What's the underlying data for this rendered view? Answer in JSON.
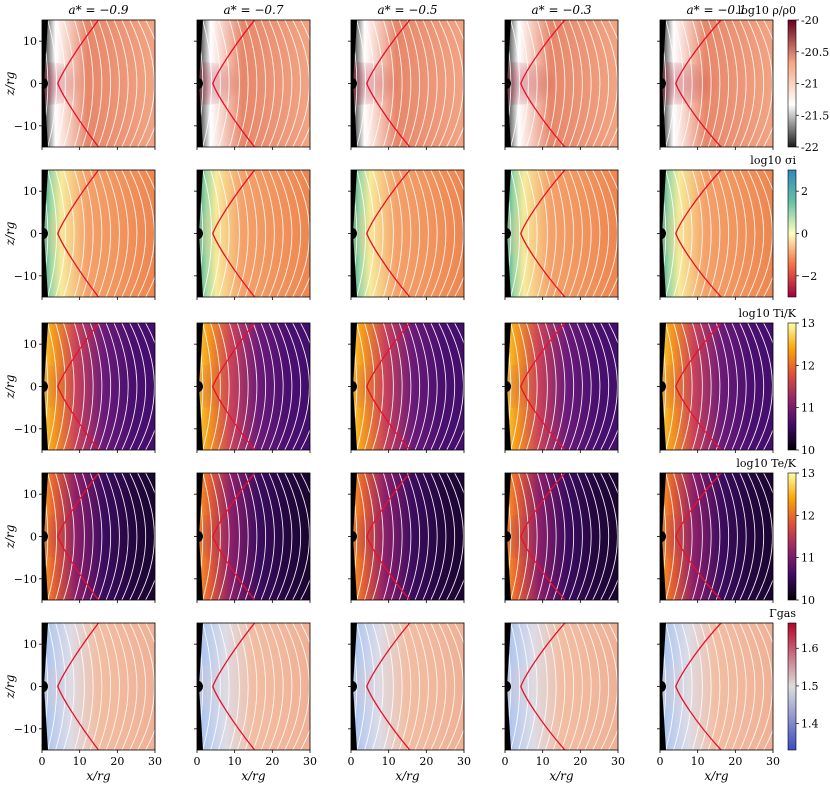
{
  "chart_data": {
    "type": "heatmap",
    "panel_titles": [
      "a* = −0.9",
      "a* = −0.7",
      "a* = −0.5",
      "a* = −0.3",
      "a* = −0.1"
    ],
    "xlabel": "x/rg",
    "ylabel": "z/rg",
    "xlim": [
      0,
      30
    ],
    "ylim": [
      -15,
      15
    ],
    "xticks": [
      "0",
      "10",
      "20",
      "30"
    ],
    "yticks": [
      "10",
      "0",
      "−10"
    ],
    "grid": false,
    "rows": [
      {
        "quantity": "log10 ρ/ρ0",
        "colormap": "RdGy_r",
        "colors": [
          "#1a1a1a",
          "#ffffff",
          "#f4a582",
          "#67001f"
        ],
        "clim": [
          -22,
          -20
        ],
        "cbar_ticks": [
          "-20",
          "-20.5",
          "-21",
          "-21.5",
          "-22"
        ]
      },
      {
        "quantity": "log10 σi",
        "colormap": "Spectral",
        "colors": [
          "#9e0142",
          "#f46d43",
          "#ffffbf",
          "#66c2a5",
          "#3288bd"
        ],
        "clim": [
          -3,
          3
        ],
        "cbar_ticks": [
          "2",
          "0",
          "−2"
        ]
      },
      {
        "quantity": "log10 Ti/K",
        "colormap": "inferno",
        "colors": [
          "#000004",
          "#420a68",
          "#932667",
          "#dd513a",
          "#fca50a",
          "#fcffa4"
        ],
        "clim": [
          10,
          13
        ],
        "cbar_ticks": [
          "13",
          "12",
          "11",
          "10"
        ]
      },
      {
        "quantity": "log10 Te/K",
        "colormap": "inferno",
        "colors": [
          "#000004",
          "#420a68",
          "#932667",
          "#dd513a",
          "#fca50a",
          "#fcffa4"
        ],
        "clim": [
          10,
          13
        ],
        "cbar_ticks": [
          "13",
          "12",
          "11",
          "10"
        ]
      },
      {
        "quantity": "Γgas",
        "colormap": "coolwarm",
        "colors": [
          "#3b4cc0",
          "#dddddd",
          "#b40426"
        ],
        "clim": [
          1.33,
          1.667
        ],
        "cbar_ticks": [
          "1.6",
          "1.5",
          "1.4"
        ]
      }
    ],
    "contour_line_color": "#e8102a",
    "field_line_color": "#ffffff"
  }
}
